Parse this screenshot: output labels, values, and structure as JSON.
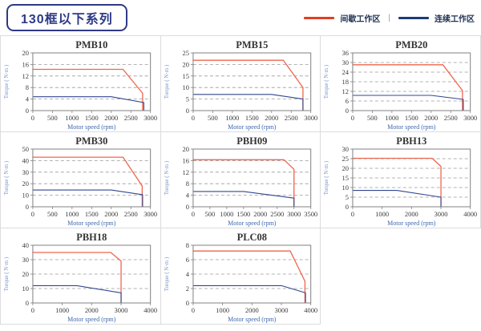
{
  "header": {
    "title": "130框以下系列"
  },
  "legend": {
    "intermittent_label": "间歇工作区",
    "separator": "|",
    "continuous_label": "连续工作区",
    "intermittent_color": "#e0401f",
    "continuous_color": "#1e3a78"
  },
  "chart_style": {
    "red_line_color": "#f0654c",
    "blue_line_color": "#33478f",
    "grid_color": "#9a9a9a",
    "axis_color": "#808080",
    "tick_label_color": "#3a3a3a",
    "title_color": "#333333",
    "xlabel_color": "#3f66b0",
    "ylabel_color": "#7a95cc"
  },
  "chart_data": [
    {
      "type": "line",
      "title": "PMB10",
      "xlabel": "Motor speed (rpm)",
      "ylabel": "Torque ( N·m )",
      "xlim": [
        0,
        3000
      ],
      "x_ticks": [
        0,
        500,
        1000,
        1500,
        2000,
        2500,
        3000
      ],
      "ylim": [
        0,
        20
      ],
      "y_ticks": [
        0,
        4,
        8,
        12,
        16,
        20
      ],
      "series": [
        {
          "name": "间歇工作区",
          "color": "#f0654c",
          "points": [
            [
              0,
              14.3
            ],
            [
              2300,
              14.3
            ],
            [
              2800,
              6
            ],
            [
              2800,
              0
            ]
          ]
        },
        {
          "name": "连续工作区",
          "color": "#33478f",
          "points": [
            [
              0,
              4.8
            ],
            [
              2000,
              4.8
            ],
            [
              2830,
              2.8
            ],
            [
              2830,
              0
            ]
          ]
        }
      ]
    },
    {
      "type": "line",
      "title": "PMB15",
      "xlabel": "Motor speed (rpm)",
      "ylabel": "Torque ( N·m )",
      "xlim": [
        0,
        3000
      ],
      "x_ticks": [
        0,
        500,
        1000,
        1500,
        2000,
        2500,
        3000
      ],
      "ylim": [
        0,
        25
      ],
      "y_ticks": [
        0,
        5,
        10,
        15,
        20,
        25
      ],
      "series": [
        {
          "name": "间歇工作区",
          "color": "#f0654c",
          "points": [
            [
              0,
              21.8
            ],
            [
              2300,
              21.8
            ],
            [
              2800,
              10
            ],
            [
              2800,
              0
            ]
          ]
        },
        {
          "name": "连续工作区",
          "color": "#33478f",
          "points": [
            [
              0,
              7
            ],
            [
              2000,
              7
            ],
            [
              2800,
              5
            ],
            [
              2800,
              0
            ]
          ]
        }
      ]
    },
    {
      "type": "line",
      "title": "PMB20",
      "xlabel": "Motor speed (rpm)",
      "ylabel": "Torque ( N·m )",
      "xlim": [
        0,
        3000
      ],
      "x_ticks": [
        0,
        500,
        1000,
        1500,
        2000,
        2500,
        3000
      ],
      "ylim": [
        0,
        36
      ],
      "y_ticks": [
        0,
        6,
        12,
        18,
        24,
        30,
        36
      ],
      "series": [
        {
          "name": "间歇工作区",
          "color": "#f0654c",
          "points": [
            [
              0,
              28.6
            ],
            [
              2300,
              28.6
            ],
            [
              2800,
              12.5
            ],
            [
              2800,
              0
            ]
          ]
        },
        {
          "name": "连续工作区",
          "color": "#33478f",
          "points": [
            [
              0,
              9.5
            ],
            [
              2000,
              9.5
            ],
            [
              2820,
              7
            ],
            [
              2820,
              0
            ]
          ]
        }
      ]
    },
    {
      "type": "line",
      "title": "PMB30",
      "xlabel": "Motor speed (rpm)",
      "ylabel": "Torque ( N·m )",
      "xlim": [
        0,
        3000
      ],
      "x_ticks": [
        0,
        500,
        1000,
        1500,
        2000,
        2500,
        3000
      ],
      "ylim": [
        0,
        50
      ],
      "y_ticks": [
        0,
        10,
        20,
        30,
        40,
        50
      ],
      "series": [
        {
          "name": "间歇工作区",
          "color": "#f0654c",
          "points": [
            [
              0,
              43
            ],
            [
              2300,
              43
            ],
            [
              2790,
              18
            ],
            [
              2790,
              0
            ]
          ]
        },
        {
          "name": "连续工作区",
          "color": "#33478f",
          "points": [
            [
              0,
              14.5
            ],
            [
              2000,
              14.5
            ],
            [
              2800,
              10.5
            ],
            [
              2800,
              0
            ]
          ]
        }
      ]
    },
    {
      "type": "line",
      "title": "PBH09",
      "xlabel": "Motor speed (rpm)",
      "ylabel": "Torque ( N·m )",
      "xlim": [
        0,
        3500
      ],
      "x_ticks": [
        0,
        500,
        1000,
        1500,
        2000,
        2500,
        3000,
        3500
      ],
      "ylim": [
        0,
        20
      ],
      "y_ticks": [
        0,
        4,
        8,
        12,
        16,
        20
      ],
      "series": [
        {
          "name": "间歇工作区",
          "color": "#f0654c",
          "points": [
            [
              0,
              16.3
            ],
            [
              2700,
              16.3
            ],
            [
              3000,
              13
            ],
            [
              3000,
              0
            ]
          ]
        },
        {
          "name": "连续工作区",
          "color": "#33478f",
          "points": [
            [
              0,
              5.3
            ],
            [
              1500,
              5.3
            ],
            [
              3000,
              3
            ],
            [
              3000,
              0
            ]
          ]
        }
      ]
    },
    {
      "type": "line",
      "title": "PBH13",
      "xlabel": "Motor speed (rpm)",
      "ylabel": "Torque ( N·m )",
      "xlim": [
        0,
        4000
      ],
      "x_ticks": [
        0,
        1000,
        2000,
        3000,
        4000
      ],
      "ylim": [
        0,
        30
      ],
      "y_ticks": [
        0,
        5,
        10,
        15,
        20,
        25,
        30
      ],
      "series": [
        {
          "name": "间歇工作区",
          "color": "#f0654c",
          "points": [
            [
              0,
              25.2
            ],
            [
              2700,
              25.2
            ],
            [
              3000,
              21
            ],
            [
              3000,
              0
            ]
          ]
        },
        {
          "name": "连续工作区",
          "color": "#33478f",
          "points": [
            [
              0,
              8.5
            ],
            [
              1500,
              8.5
            ],
            [
              3000,
              5
            ],
            [
              3000,
              0
            ]
          ]
        }
      ]
    },
    {
      "type": "line",
      "title": "PBH18",
      "xlabel": "Motor speed (rpm)",
      "ylabel": "Torque ( N·m )",
      "xlim": [
        0,
        4000
      ],
      "x_ticks": [
        0,
        1000,
        2000,
        3000,
        4000
      ],
      "ylim": [
        0,
        40
      ],
      "y_ticks": [
        0,
        10,
        20,
        30,
        40
      ],
      "series": [
        {
          "name": "间歇工作区",
          "color": "#f0654c",
          "points": [
            [
              0,
              35
            ],
            [
              2650,
              35
            ],
            [
              3000,
              29
            ],
            [
              3000,
              0
            ]
          ]
        },
        {
          "name": "连续工作区",
          "color": "#33478f",
          "points": [
            [
              0,
              12
            ],
            [
              1500,
              12
            ],
            [
              3000,
              7
            ],
            [
              3000,
              0
            ]
          ]
        }
      ]
    },
    {
      "type": "line",
      "title": "PLC08",
      "xlabel": "Motor speed (rpm)",
      "ylabel": "Torque ( N·m )",
      "xlim": [
        0,
        4000
      ],
      "x_ticks": [
        0,
        1000,
        2000,
        3000,
        4000
      ],
      "ylim": [
        0,
        8
      ],
      "y_ticks": [
        0,
        2,
        4,
        6,
        8
      ],
      "series": [
        {
          "name": "间歇工作区",
          "color": "#f0654c",
          "points": [
            [
              0,
              7.2
            ],
            [
              3300,
              7.2
            ],
            [
              3800,
              3
            ],
            [
              3800,
              0
            ]
          ]
        },
        {
          "name": "连续工作区",
          "color": "#33478f",
          "points": [
            [
              0,
              2.4
            ],
            [
              3000,
              2.4
            ],
            [
              3820,
              1.4
            ],
            [
              3820,
              0
            ]
          ]
        }
      ]
    }
  ]
}
